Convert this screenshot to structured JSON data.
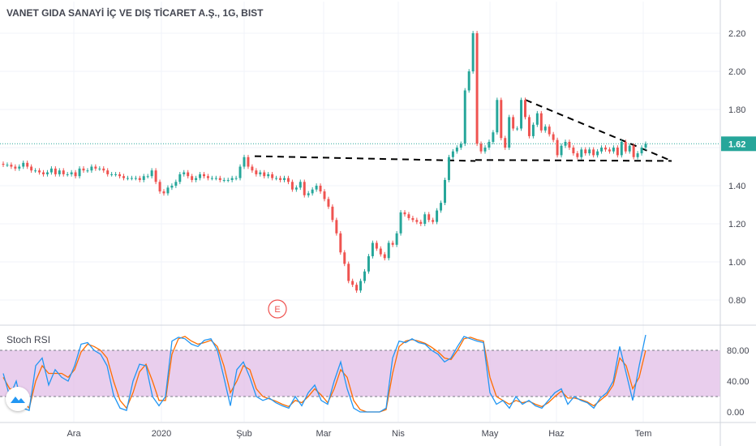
{
  "chart_data": [
    {
      "type": "candlestick",
      "title": "VANET GIDA SANAYİ İÇ VE DIŞ TİCARET A.Ş., 1G, BIST",
      "x_tick_labels": [
        "Ara",
        "2020",
        "Şub",
        "Mar",
        "Nis",
        "May",
        "Haz",
        "Tem"
      ],
      "y_ticks": [
        0.8,
        1.0,
        1.2,
        1.4,
        1.6,
        1.8,
        2.0,
        2.2
      ],
      "y_tick_labels": [
        "0.80",
        "1.00",
        "1.20",
        "1.40",
        "1.60",
        "1.80",
        "2.00",
        "2.20"
      ],
      "ylim": [
        0.67,
        2.36
      ],
      "last_price": 1.62,
      "last_price_label": "1.62",
      "event_marker": "E",
      "colors": {
        "up": "#26a69a",
        "down": "#ef5350",
        "last_price": "#26a69a"
      },
      "closes": [
        1.51,
        1.51,
        1.5,
        1.49,
        1.5,
        1.52,
        1.5,
        1.48,
        1.48,
        1.47,
        1.46,
        1.47,
        1.49,
        1.46,
        1.48,
        1.46,
        1.46,
        1.47,
        1.45,
        1.49,
        1.48,
        1.48,
        1.5,
        1.49,
        1.49,
        1.48,
        1.46,
        1.46,
        1.46,
        1.45,
        1.44,
        1.44,
        1.44,
        1.44,
        1.43,
        1.45,
        1.45,
        1.48,
        1.42,
        1.37,
        1.36,
        1.39,
        1.4,
        1.42,
        1.46,
        1.47,
        1.45,
        1.43,
        1.44,
        1.46,
        1.45,
        1.44,
        1.44,
        1.44,
        1.43,
        1.43,
        1.43,
        1.44,
        1.44,
        1.5,
        1.55,
        1.5,
        1.48,
        1.46,
        1.47,
        1.45,
        1.46,
        1.44,
        1.44,
        1.43,
        1.44,
        1.42,
        1.38,
        1.39,
        1.42,
        1.35,
        1.36,
        1.38,
        1.4,
        1.37,
        1.33,
        1.29,
        1.22,
        1.15,
        1.05,
        0.99,
        0.9,
        0.88,
        0.85,
        0.9,
        0.95,
        1.03,
        1.1,
        1.07,
        1.04,
        1.02,
        1.1,
        1.09,
        1.15,
        1.26,
        1.25,
        1.23,
        1.22,
        1.21,
        1.2,
        1.25,
        1.22,
        1.21,
        1.27,
        1.31,
        1.43,
        1.55,
        1.58,
        1.6,
        1.62,
        1.9,
        2.0,
        2.2,
        1.62,
        1.58,
        1.6,
        1.63,
        1.68,
        1.85,
        1.65,
        1.6,
        1.76,
        1.7,
        1.7,
        1.85,
        1.76,
        1.66,
        1.72,
        1.78,
        1.69,
        1.71,
        1.67,
        1.64,
        1.56,
        1.61,
        1.63,
        1.6,
        1.57,
        1.55,
        1.59,
        1.57,
        1.59,
        1.56,
        1.58,
        1.6,
        1.59,
        1.58,
        1.6,
        1.56,
        1.63,
        1.58,
        1.61,
        1.55,
        1.57,
        1.6,
        1.62
      ]
    },
    {
      "type": "line",
      "title": "Stoch RSI",
      "y_ticks": [
        0,
        40,
        80
      ],
      "y_tick_labels": [
        "0.00",
        "40.00",
        "80.00"
      ],
      "ylim": [
        -10,
        105
      ],
      "band": [
        20,
        80
      ],
      "colors": {
        "k": "#2196f3",
        "d": "#ff6d00",
        "band_fill": "#e1bee7",
        "band_line": "#787b86"
      },
      "series": [
        {
          "values": [
            50,
            20,
            40,
            5,
            2,
            60,
            70,
            35,
            55,
            45,
            40,
            60,
            88,
            90,
            80,
            75,
            60,
            22,
            5,
            2,
            40,
            62,
            60,
            20,
            8,
            20,
            92,
            97,
            95,
            88,
            85,
            93,
            95,
            80,
            45,
            8,
            55,
            65,
            45,
            20,
            15,
            18,
            12,
            8,
            5,
            20,
            8,
            25,
            35,
            15,
            10,
            40,
            65,
            30,
            5,
            0,
            0,
            0,
            0,
            5,
            70,
            92,
            90,
            95,
            90,
            88,
            80,
            75,
            65,
            70,
            85,
            98,
            95,
            92,
            90,
            25,
            10,
            15,
            5,
            20,
            10,
            15,
            8,
            5,
            15,
            25,
            30,
            10,
            20,
            15,
            12,
            5,
            18,
            25,
            40,
            85,
            50,
            15,
            60,
            100
          ]
        },
        {
          "values": [
            45,
            30,
            30,
            15,
            5,
            40,
            60,
            50,
            50,
            50,
            45,
            55,
            78,
            88,
            85,
            80,
            70,
            40,
            15,
            5,
            25,
            52,
            62,
            40,
            15,
            15,
            75,
            95,
            98,
            92,
            88,
            90,
            93,
            85,
            60,
            25,
            40,
            60,
            55,
            30,
            20,
            17,
            14,
            10,
            7,
            15,
            12,
            20,
            30,
            22,
            12,
            30,
            55,
            45,
            15,
            3,
            0,
            0,
            0,
            3,
            50,
            85,
            92,
            94,
            92,
            89,
            84,
            78,
            70,
            68,
            80,
            95,
            97,
            94,
            92,
            45,
            20,
            15,
            10,
            15,
            12,
            14,
            10,
            7,
            12,
            20,
            27,
            18,
            18,
            16,
            13,
            8,
            15,
            22,
            35,
            70,
            60,
            30,
            45,
            80
          ]
        }
      ]
    }
  ]
}
